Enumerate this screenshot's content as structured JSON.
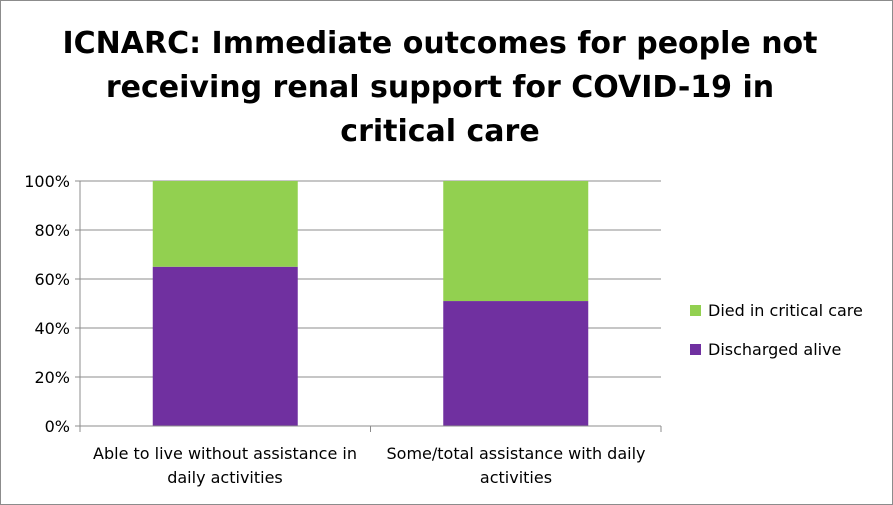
{
  "chart_data": {
    "type": "bar",
    "stacked": true,
    "title": "ICNARC: Immediate outcomes for people not receiving renal support for COVID-19 in critical care",
    "xlabel": "",
    "ylabel": "",
    "categories": [
      "Able to live without assistance in daily activities",
      "Some/total assistance with daily activities"
    ],
    "series": [
      {
        "name": "Discharged alive",
        "values": [
          65,
          51
        ],
        "color": "#7030a0"
      },
      {
        "name": "Died in critical care",
        "values": [
          35,
          49
        ],
        "color": "#92d050"
      }
    ],
    "ylim": [
      0,
      100
    ],
    "yticks": [
      "0%",
      "20%",
      "40%",
      "60%",
      "80%",
      "100%"
    ],
    "grid": true,
    "legend_position": "right",
    "legend_order": [
      "Died in critical care",
      "Discharged alive"
    ]
  }
}
